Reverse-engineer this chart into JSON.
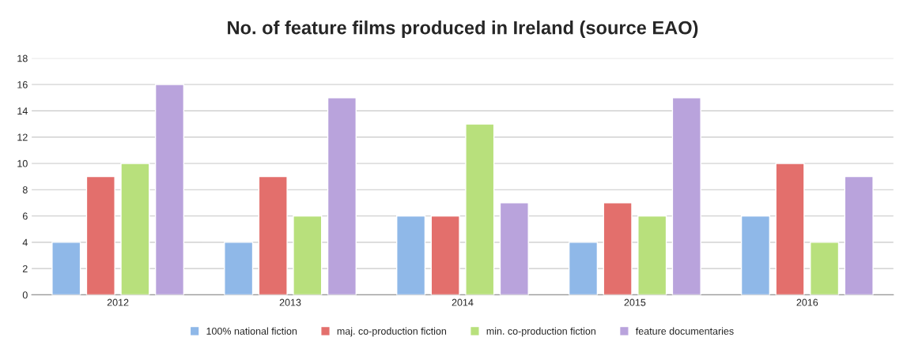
{
  "chart_data": {
    "type": "bar",
    "title": "No. of feature films produced in Ireland (source EAO)",
    "categories": [
      "2012",
      "2013",
      "2014",
      "2015",
      "2016"
    ],
    "series": [
      {
        "name": "100% national fiction",
        "color": "#8fb8e8",
        "values": [
          4,
          4,
          6,
          4,
          6
        ]
      },
      {
        "name": "maj. co-production fiction",
        "color": "#e36f6c",
        "values": [
          9,
          9,
          6,
          7,
          10
        ]
      },
      {
        "name": "min. co-production fiction",
        "color": "#b8e07c",
        "values": [
          10,
          6,
          13,
          6,
          4
        ]
      },
      {
        "name": "feature documentaries",
        "color": "#b9a3dc",
        "values": [
          16,
          15,
          7,
          15,
          9
        ]
      }
    ],
    "ylim": [
      0,
      18
    ],
    "yticks": [
      0,
      2,
      4,
      6,
      8,
      10,
      12,
      14,
      16,
      18
    ],
    "grid": "y",
    "legend": "bottom"
  }
}
